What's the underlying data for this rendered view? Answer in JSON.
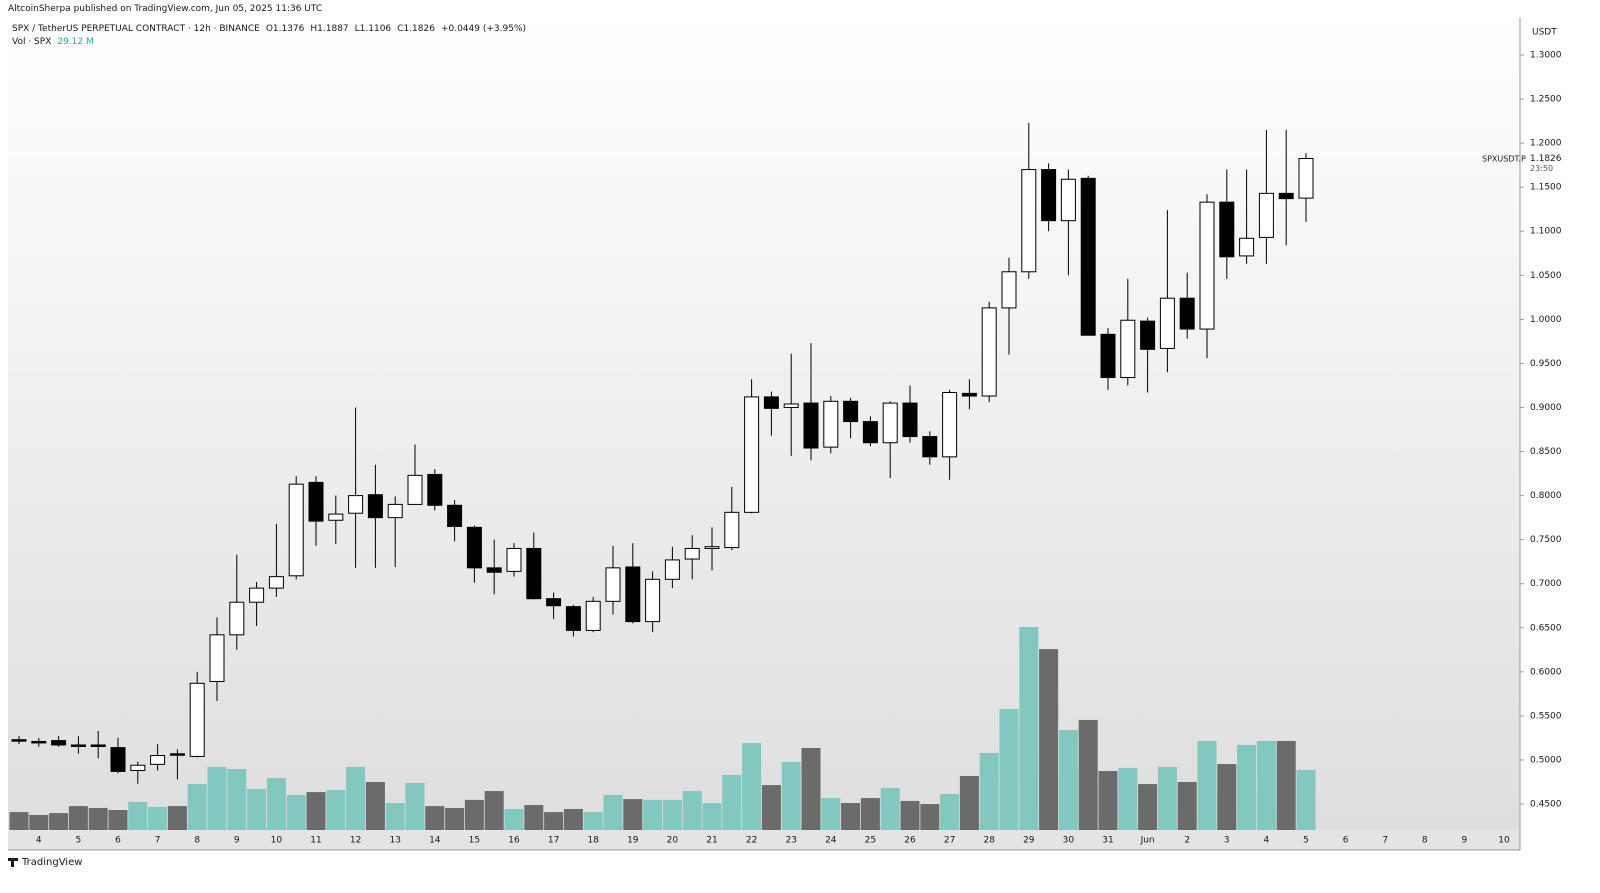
{
  "header": {
    "publisher": "AltcoinSherpa published on TradingView.com, Jun 05, 2025 11:36 UTC"
  },
  "footer": {
    "brand": "TradingView"
  },
  "chart_data": {
    "type": "candlestick",
    "title": "SPX / TetherUS PERPETUAL CONTRACT · 12h · BINANCE",
    "ohlc_legend": [
      "O1.1376",
      "H1.1887",
      "L1.1106",
      "C1.1826",
      "+0.0449 (+3.95%)"
    ],
    "volume_legend": "Vol · SPX",
    "volume_value": "29.12 M",
    "currency": "USDT",
    "symbol_label": "SPXUSDT.P",
    "last_price_label": "1.1826",
    "countdown": "23:50",
    "up_color": "#ffffff",
    "down_color": "#000000",
    "volume_up_color": "#82c7c0",
    "volume_down_color": "#6b6b6b",
    "xticks": [
      "4",
      "5",
      "6",
      "7",
      "8",
      "9",
      "10",
      "11",
      "12",
      "13",
      "14",
      "15",
      "16",
      "17",
      "18",
      "19",
      "20",
      "21",
      "22",
      "23",
      "24",
      "25",
      "26",
      "27",
      "28",
      "29",
      "30",
      "31",
      "Jun",
      "2",
      "3",
      "4",
      "5",
      "6",
      "7",
      "8",
      "9",
      "10"
    ],
    "ylim": [
      0.4205,
      1.342
    ],
    "yticks": [
      {
        "value": 1.3,
        "label": "1.3000"
      },
      {
        "value": 1.25,
        "label": "1.2500"
      },
      {
        "value": 1.2,
        "label": "1.2000"
      },
      {
        "value": 1.15,
        "label": "1.1500"
      },
      {
        "value": 1.1,
        "label": "1.1000"
      },
      {
        "value": 1.05,
        "label": "1.0500"
      },
      {
        "value": 1.0,
        "label": "1.0000"
      },
      {
        "value": 0.95,
        "label": "0.9500"
      },
      {
        "value": 0.9,
        "label": "0.9000"
      },
      {
        "value": 0.85,
        "label": "0.8500"
      },
      {
        "value": 0.8,
        "label": "0.8000"
      },
      {
        "value": 0.75,
        "label": "0.7500"
      },
      {
        "value": 0.7,
        "label": "0.7000"
      },
      {
        "value": 0.65,
        "label": "0.6500"
      },
      {
        "value": 0.6,
        "label": "0.6000"
      },
      {
        "value": 0.55,
        "label": "0.5500"
      },
      {
        "value": 0.5,
        "label": "0.5000"
      },
      {
        "value": 0.45,
        "label": "0.4500"
      }
    ],
    "open": [
      0.523,
      0.521,
      0.522,
      0.517,
      0.517,
      0.514,
      0.488,
      0.495,
      0.507,
      0.504,
      0.589,
      0.642,
      0.679,
      0.695,
      0.709,
      0.815,
      0.772,
      0.78,
      0.801,
      0.775,
      0.79,
      0.824,
      0.789,
      0.764,
      0.718,
      0.714,
      0.74,
      0.683,
      0.674,
      0.647,
      0.68,
      0.719,
      0.657,
      0.705,
      0.728,
      0.74,
      0.741,
      0.781,
      0.912,
      0.9,
      0.905,
      0.855,
      0.907,
      0.884,
      0.86,
      0.905,
      0.867,
      0.844,
      0.916,
      0.913,
      1.013,
      1.054,
      1.17,
      1.112,
      1.16,
      0.983,
      0.934,
      0.998,
      0.967,
      1.024,
      0.989,
      1.133,
      1.072,
      1.093,
      1.143,
      1.1376
    ],
    "high": [
      0.527,
      0.525,
      0.527,
      0.527,
      0.533,
      0.525,
      0.498,
      0.518,
      0.512,
      0.6,
      0.662,
      0.733,
      0.702,
      0.768,
      0.822,
      0.822,
      0.8,
      0.9,
      0.835,
      0.799,
      0.858,
      0.83,
      0.795,
      0.766,
      0.75,
      0.746,
      0.758,
      0.69,
      0.676,
      0.685,
      0.743,
      0.746,
      0.714,
      0.742,
      0.755,
      0.764,
      0.81,
      0.932,
      0.918,
      0.961,
      0.973,
      0.913,
      0.911,
      0.89,
      0.907,
      0.925,
      0.873,
      0.92,
      0.932,
      1.02,
      1.07,
      1.223,
      1.177,
      1.17,
      1.163,
      0.99,
      1.046,
      1.002,
      1.124,
      1.053,
      1.142,
      1.17,
      1.17,
      1.215,
      1.215,
      1.1887
    ],
    "low": [
      0.518,
      0.515,
      0.515,
      0.507,
      0.502,
      0.485,
      0.473,
      0.488,
      0.478,
      0.503,
      0.567,
      0.625,
      0.652,
      0.685,
      0.705,
      0.743,
      0.745,
      0.718,
      0.718,
      0.719,
      0.79,
      0.783,
      0.748,
      0.701,
      0.688,
      0.708,
      0.682,
      0.66,
      0.64,
      0.645,
      0.665,
      0.655,
      0.645,
      0.695,
      0.705,
      0.715,
      0.738,
      0.78,
      0.868,
      0.845,
      0.84,
      0.848,
      0.865,
      0.856,
      0.82,
      0.86,
      0.835,
      0.818,
      0.898,
      0.906,
      0.96,
      1.046,
      1.1,
      1.05,
      0.982,
      0.92,
      0.925,
      0.917,
      0.94,
      0.978,
      0.956,
      1.046,
      1.063,
      1.063,
      1.084,
      1.1106
    ],
    "close": [
      0.522,
      0.52,
      0.517,
      0.516,
      0.516,
      0.487,
      0.494,
      0.505,
      0.506,
      0.587,
      0.642,
      0.679,
      0.695,
      0.708,
      0.813,
      0.771,
      0.779,
      0.8,
      0.775,
      0.79,
      0.823,
      0.789,
      0.765,
      0.718,
      0.713,
      0.74,
      0.683,
      0.675,
      0.647,
      0.68,
      0.718,
      0.657,
      0.705,
      0.727,
      0.74,
      0.742,
      0.781,
      0.912,
      0.899,
      0.904,
      0.854,
      0.907,
      0.884,
      0.86,
      0.905,
      0.867,
      0.844,
      0.917,
      0.913,
      1.013,
      1.054,
      1.17,
      1.112,
      1.159,
      0.982,
      0.934,
      0.999,
      0.966,
      1.024,
      0.989,
      1.133,
      1.071,
      1.092,
      1.143,
      1.137,
      1.1826
    ],
    "volume": [
      8.7,
      7.3,
      8.2,
      11.6,
      10.7,
      9.7,
      13.6,
      11.2,
      11.6,
      22.3,
      30.6,
      29.6,
      19.9,
      25.2,
      17.0,
      18.4,
      19.4,
      30.6,
      23.3,
      13.1,
      22.8,
      11.6,
      10.7,
      14.6,
      18.9,
      10.2,
      12.1,
      8.7,
      10.2,
      8.7,
      17.0,
      15.0,
      14.6,
      14.6,
      18.9,
      13.1,
      26.7,
      42.2,
      21.8,
      33.0,
      39.8,
      15.5,
      13.1,
      15.5,
      20.4,
      14.1,
      12.6,
      17.5,
      26.2,
      37.4,
      58.7,
      98.5,
      87.8,
      48.5,
      53.4,
      28.6,
      30.1,
      22.3,
      30.6,
      23.3,
      43.2,
      32.0,
      41.3,
      43.2,
      43.2,
      29.12
    ]
  }
}
